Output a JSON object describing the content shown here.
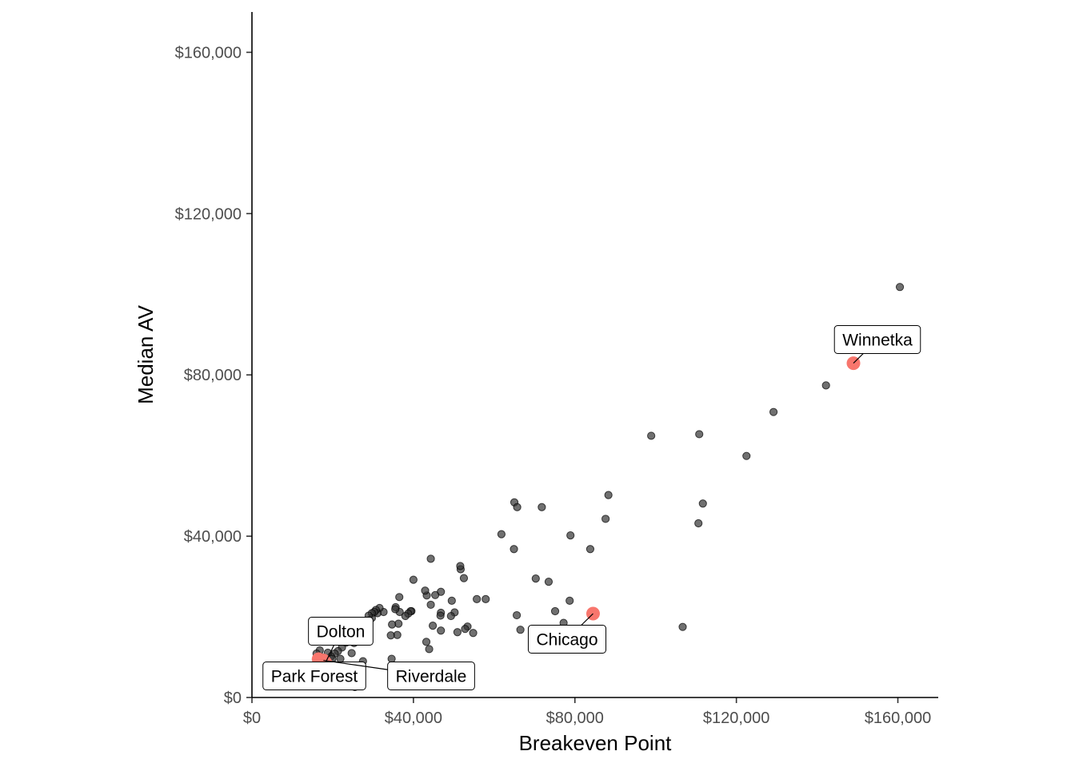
{
  "chart_data": {
    "type": "scatter",
    "xlabel": "Breakeven Point",
    "ylabel": "Median AV",
    "xlim": [
      0,
      170000
    ],
    "ylim": [
      0,
      170000
    ],
    "x_ticks": [
      {
        "value": 0,
        "label": "$0"
      },
      {
        "value": 40000,
        "label": "$40,000"
      },
      {
        "value": 80000,
        "label": "$80,000"
      },
      {
        "value": 120000,
        "label": "$120,000"
      },
      {
        "value": 160000,
        "label": "$160,000"
      }
    ],
    "y_ticks": [
      {
        "value": 0,
        "label": "$0"
      },
      {
        "value": 40000,
        "label": "$40,000"
      },
      {
        "value": 80000,
        "label": "$80,000"
      },
      {
        "value": 120000,
        "label": "$120,000"
      },
      {
        "value": 160000,
        "label": "$160,000"
      }
    ],
    "grid": false,
    "colors": {
      "points": "#333333",
      "highlight": "#f8766d"
    },
    "points": [
      [
        160500,
        101800
      ],
      [
        142200,
        77400
      ],
      [
        129200,
        70800
      ],
      [
        122500,
        59900
      ],
      [
        110800,
        65300
      ],
      [
        111700,
        48100
      ],
      [
        110600,
        43200
      ],
      [
        98900,
        64900
      ],
      [
        106700,
        17500
      ],
      [
        88300,
        50200
      ],
      [
        87600,
        44300
      ],
      [
        83800,
        36800
      ],
      [
        78700,
        24000
      ],
      [
        78900,
        40200
      ],
      [
        75100,
        21400
      ],
      [
        77200,
        18500
      ],
      [
        71800,
        47200
      ],
      [
        73500,
        28700
      ],
      [
        70300,
        29500
      ],
      [
        65000,
        48400
      ],
      [
        65700,
        47200
      ],
      [
        61800,
        40500
      ],
      [
        64900,
        36800
      ],
      [
        65600,
        20400
      ],
      [
        66500,
        16800
      ],
      [
        57900,
        24400
      ],
      [
        55700,
        24400
      ],
      [
        54800,
        16000
      ],
      [
        52500,
        29600
      ],
      [
        51700,
        31800
      ],
      [
        51600,
        32600
      ],
      [
        53400,
        17600
      ],
      [
        52800,
        17000
      ],
      [
        50200,
        21100
      ],
      [
        50900,
        16200
      ],
      [
        49500,
        24000
      ],
      [
        49300,
        20200
      ],
      [
        46800,
        21000
      ],
      [
        46700,
        20300
      ],
      [
        46800,
        16600
      ],
      [
        46800,
        26200
      ],
      [
        45400,
        25400
      ],
      [
        43300,
        25300
      ],
      [
        42900,
        26500
      ],
      [
        44300,
        34400
      ],
      [
        44300,
        23000
      ],
      [
        44800,
        17800
      ],
      [
        43900,
        12000
      ],
      [
        43200,
        13800
      ],
      [
        40000,
        29200
      ],
      [
        39500,
        21400
      ],
      [
        39300,
        21400
      ],
      [
        38700,
        20800
      ],
      [
        38000,
        20200
      ],
      [
        36500,
        24900
      ],
      [
        36600,
        21200
      ],
      [
        36300,
        18300
      ],
      [
        36000,
        15500
      ],
      [
        35600,
        22400
      ],
      [
        35500,
        21900
      ],
      [
        34700,
        18100
      ],
      [
        34400,
        15400
      ],
      [
        34600,
        9600
      ],
      [
        32600,
        21200
      ],
      [
        31600,
        22200
      ],
      [
        31100,
        20900
      ],
      [
        30700,
        21700
      ],
      [
        30300,
        21200
      ],
      [
        29700,
        20900
      ],
      [
        29700,
        19700
      ],
      [
        28900,
        20300
      ],
      [
        28300,
        19000
      ],
      [
        27600,
        15500
      ],
      [
        26900,
        16600
      ],
      [
        26100,
        15100
      ],
      [
        25300,
        13500
      ],
      [
        24700,
        11000
      ],
      [
        24300,
        17800
      ],
      [
        23300,
        13600
      ],
      [
        22300,
        12400
      ],
      [
        21300,
        11500
      ],
      [
        20500,
        10900
      ],
      [
        19600,
        10200
      ],
      [
        18800,
        11100
      ],
      [
        18000,
        9800
      ],
      [
        17300,
        10000
      ],
      [
        16800,
        11700
      ],
      [
        16000,
        10900
      ],
      [
        17200,
        9300
      ],
      [
        19900,
        9600
      ],
      [
        21900,
        9600
      ],
      [
        18100,
        7900
      ],
      [
        20400,
        8100
      ],
      [
        25500,
        2600
      ],
      [
        27500,
        9000
      ]
    ],
    "highlighted": [
      {
        "name": "Winnetka",
        "x": 149000,
        "y": 82900
      },
      {
        "name": "Chicago",
        "x": 84500,
        "y": 20800
      },
      {
        "name": "Park Forest",
        "x": 16500,
        "y": 9500
      },
      {
        "name": "Dolton",
        "x": 18200,
        "y": 8600
      },
      {
        "name": "Riverdale",
        "x": 17700,
        "y": 9200
      }
    ],
    "annotations": [
      "Winnetka",
      "Chicago",
      "Dolton",
      "Park Forest",
      "Riverdale"
    ]
  }
}
